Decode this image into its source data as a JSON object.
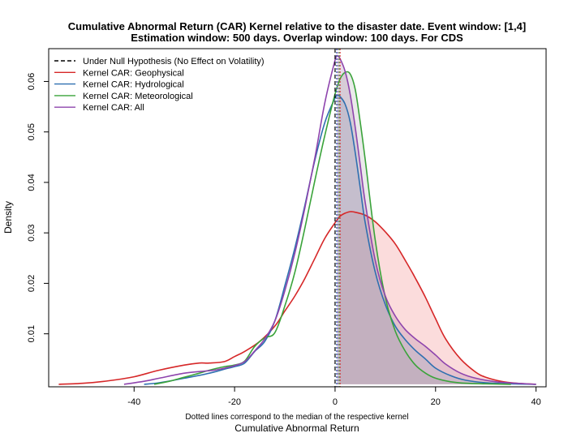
{
  "chart_data": {
    "type": "line",
    "title_line1": "Cumulative Abnormal Return (CAR) Kernel relative to the disaster date. Event window: [1,4]",
    "title_line2": "Estimation window: 500 days. Overlap window: 100 days. For CDS",
    "xlabel": "Cumulative Abnormal Return",
    "note": "Dotted lines correspond to the median of the respective kernel",
    "ylabel": "Density",
    "xlim": [
      -57,
      42
    ],
    "ylim": [
      -0.0005,
      0.0665
    ],
    "x_ticks": [
      -40,
      -20,
      0,
      20,
      40
    ],
    "x_tick_labels": [
      "-40",
      "-20",
      "0",
      "20",
      "40"
    ],
    "y_ticks": [
      0.01,
      0.02,
      0.03,
      0.04,
      0.05,
      0.06
    ],
    "y_tick_labels": [
      "0.01",
      "0.02",
      "0.03",
      "0.04",
      "0.05",
      "0.06"
    ],
    "legend_position": "top-left",
    "null_hypothesis": {
      "name": "Under Null Hypothesis (No Effect on Volatility)",
      "x": 0,
      "color": "#000000",
      "style": "dashed"
    },
    "series": [
      {
        "name": "Kernel CAR: Geophysical",
        "color": "#d62728",
        "fill": "rgba(240,128,128,0.28)",
        "median": 1.0,
        "x": [
          -55,
          -50,
          -45,
          -40,
          -35,
          -30,
          -27,
          -25,
          -22,
          -20,
          -18,
          -15,
          -12,
          -10,
          -8,
          -6,
          -4,
          -2,
          0,
          1,
          2,
          3,
          4,
          6,
          8,
          10,
          12,
          14,
          16,
          18,
          20,
          22,
          25,
          28,
          30,
          33,
          36,
          40
        ],
        "y": [
          0.0,
          0.0002,
          0.0007,
          0.0015,
          0.0028,
          0.0038,
          0.0042,
          0.0042,
          0.0045,
          0.0055,
          0.0065,
          0.0085,
          0.0115,
          0.0145,
          0.0175,
          0.021,
          0.025,
          0.029,
          0.032,
          0.0333,
          0.0339,
          0.0342,
          0.0341,
          0.0335,
          0.0322,
          0.0302,
          0.0278,
          0.0245,
          0.021,
          0.0172,
          0.013,
          0.009,
          0.005,
          0.0024,
          0.0014,
          0.0006,
          0.0002,
          0.0
        ]
      },
      {
        "name": "Kernel CAR: Hydrological",
        "color": "#2e6fb0",
        "fill": "rgba(170,190,210,0.35)",
        "median": 0.3,
        "x": [
          -38,
          -35,
          -30,
          -25,
          -22,
          -20,
          -18,
          -16,
          -14,
          -12,
          -10,
          -8,
          -6,
          -4,
          -2,
          0,
          0.5,
          1,
          2,
          3,
          4,
          5,
          6,
          8,
          10,
          12,
          14,
          16,
          18,
          20,
          23,
          26,
          30,
          35,
          40
        ],
        "y": [
          0.0,
          0.0003,
          0.0012,
          0.0022,
          0.003,
          0.0035,
          0.0042,
          0.0065,
          0.0085,
          0.0125,
          0.0195,
          0.027,
          0.0355,
          0.0445,
          0.052,
          0.0567,
          0.0572,
          0.057,
          0.0555,
          0.052,
          0.046,
          0.039,
          0.032,
          0.0222,
          0.0158,
          0.0115,
          0.0088,
          0.0067,
          0.005,
          0.0032,
          0.0017,
          0.0008,
          0.0003,
          0.0001,
          0.0
        ]
      },
      {
        "name": "Kernel CAR: Meteorological",
        "color": "#3aa33a",
        "fill": "rgba(160,160,160,0.22)",
        "median": 0.8,
        "x": [
          -36,
          -33,
          -30,
          -27,
          -25,
          -22,
          -20,
          -18,
          -16,
          -14,
          -12,
          -10,
          -8,
          -6,
          -4,
          -2,
          0,
          1,
          2,
          3,
          4,
          5,
          6,
          8,
          10,
          12,
          14,
          16,
          18,
          20,
          23,
          26,
          30,
          35
        ],
        "y": [
          0.0,
          0.0006,
          0.0014,
          0.0022,
          0.0028,
          0.0035,
          0.0038,
          0.0046,
          0.0075,
          0.0092,
          0.0102,
          0.0155,
          0.0222,
          0.031,
          0.0405,
          0.0495,
          0.0575,
          0.0605,
          0.0618,
          0.0615,
          0.0585,
          0.052,
          0.0445,
          0.0285,
          0.0172,
          0.0105,
          0.0065,
          0.0038,
          0.0022,
          0.0012,
          0.0005,
          0.0002,
          0.0001,
          0.0
        ]
      },
      {
        "name": "Kernel CAR: All",
        "color": "#8e44ad",
        "fill": "rgba(150,100,150,0.22)",
        "median": 0.5,
        "x": [
          -42,
          -38,
          -35,
          -30,
          -26,
          -24,
          -22,
          -20,
          -18,
          -16,
          -14,
          -12,
          -10,
          -8,
          -6,
          -4,
          -2,
          0,
          0.5,
          1,
          2,
          3,
          4,
          5,
          6,
          8,
          10,
          12,
          14,
          16,
          18,
          20,
          22,
          25,
          28,
          32,
          36,
          40
        ],
        "y": [
          0.0,
          0.0006,
          0.0012,
          0.0022,
          0.0026,
          0.0028,
          0.0032,
          0.0037,
          0.0045,
          0.0066,
          0.009,
          0.0125,
          0.0185,
          0.026,
          0.035,
          0.045,
          0.056,
          0.0642,
          0.065,
          0.0645,
          0.062,
          0.0575,
          0.051,
          0.0435,
          0.036,
          0.0245,
          0.0175,
          0.0135,
          0.0108,
          0.009,
          0.0075,
          0.0058,
          0.004,
          0.0022,
          0.0012,
          0.0005,
          0.0002,
          0.0
        ]
      }
    ]
  }
}
